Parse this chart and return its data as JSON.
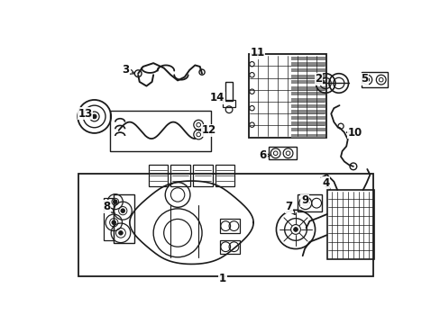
{
  "bg_color": "#ffffff",
  "line_color": "#1a1a1a",
  "fig_width": 4.89,
  "fig_height": 3.6,
  "dpi": 100,
  "label_fontsize": 8.5,
  "labels": {
    "1": [
      0.49,
      0.03,
      0.49,
      0.055,
      "center",
      "top"
    ],
    "2": [
      0.7,
      0.415,
      0.68,
      0.44,
      "right",
      "center"
    ],
    "3": [
      0.195,
      0.87,
      0.17,
      0.895,
      "right",
      "center"
    ],
    "4": [
      0.79,
      0.31,
      0.765,
      0.335,
      "right",
      "center"
    ],
    "5": [
      0.875,
      0.415,
      0.855,
      0.44,
      "right",
      "center"
    ],
    "6": [
      0.568,
      0.62,
      0.545,
      0.645,
      "right",
      "center"
    ],
    "7": [
      0.575,
      0.25,
      0.555,
      0.23,
      "right",
      "top"
    ],
    "8": [
      0.12,
      0.36,
      0.098,
      0.385,
      "right",
      "center"
    ],
    "9": [
      0.685,
      0.375,
      0.662,
      0.4,
      "right",
      "center"
    ],
    "10": [
      0.76,
      0.68,
      0.738,
      0.68,
      "right",
      "center"
    ],
    "11": [
      0.54,
      0.89,
      0.52,
      0.913,
      "right",
      "center"
    ],
    "12": [
      0.385,
      0.53,
      0.38,
      0.53,
      "left",
      "center"
    ],
    "13": [
      0.092,
      0.668,
      0.07,
      0.693,
      "right",
      "center"
    ],
    "14": [
      0.405,
      0.76,
      0.385,
      0.785,
      "right",
      "center"
    ]
  }
}
